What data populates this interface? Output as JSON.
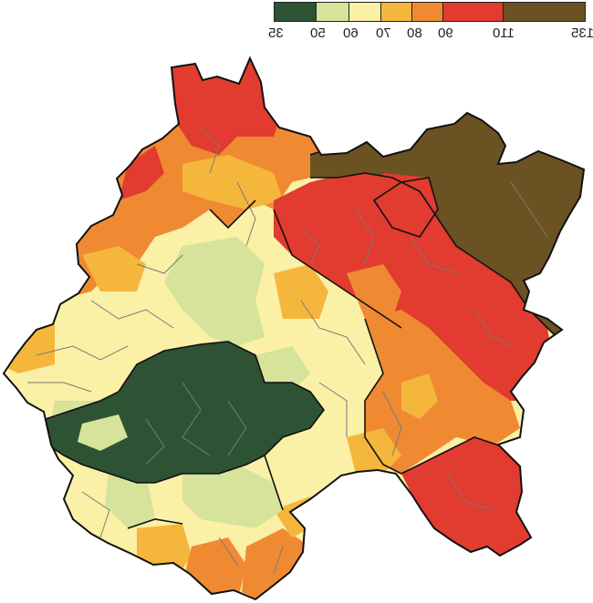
{
  "legend": {
    "classes": [
      {
        "color": "#2e5234",
        "from_label": "35",
        "to_label": "50"
      },
      {
        "color": "#d6e39a",
        "from_label": "50",
        "to_label": "60"
      },
      {
        "color": "#faf0a6",
        "from_label": "60",
        "to_label": "70"
      },
      {
        "color": "#f5b63c",
        "from_label": "70",
        "to_label": "80"
      },
      {
        "color": "#ef8a33",
        "from_label": "80",
        "to_label": "90"
      },
      {
        "color": "#e23b30",
        "from_label": "90",
        "to_label": "110"
      },
      {
        "color": "#6b5222",
        "from_label": "110",
        "to_label": "135"
      }
    ],
    "tick_labels": [
      "35",
      "50",
      "60",
      "70",
      "80",
      "90",
      "110",
      "135"
    ]
  },
  "colors": {
    "dark_green": "#2e5234",
    "light_green": "#d6e39a",
    "pale_yellow": "#faf0a6",
    "yellow_orange": "#f5b63c",
    "orange": "#ef8a33",
    "red": "#e23b30",
    "brown": "#6b5222",
    "district_border": "#7a7a7a",
    "region_border": "#111111"
  }
}
